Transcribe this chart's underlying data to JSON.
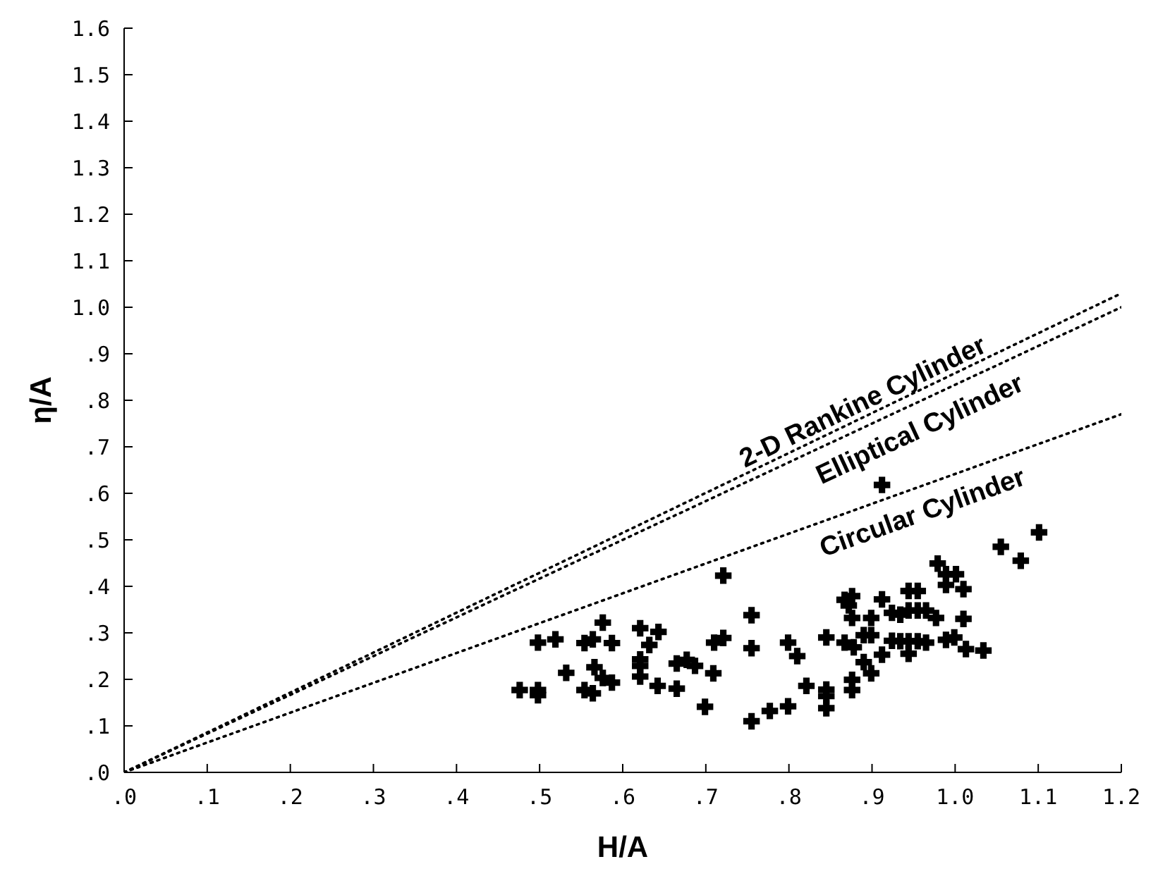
{
  "chart_data": {
    "type": "scatter",
    "xlabel": "H/A",
    "ylabel": "η/A",
    "xlim": [
      0,
      1.2
    ],
    "ylim": [
      0,
      1.6
    ],
    "xticks": [
      {
        "value": 0,
        "label": ".0"
      },
      {
        "value": 0.1,
        "label": ".1"
      },
      {
        "value": 0.2,
        "label": ".2"
      },
      {
        "value": 0.3,
        "label": ".3"
      },
      {
        "value": 0.4,
        "label": ".4"
      },
      {
        "value": 0.5,
        "label": ".5"
      },
      {
        "value": 0.6,
        "label": ".6"
      },
      {
        "value": 0.7,
        "label": ".7"
      },
      {
        "value": 0.8,
        "label": ".8"
      },
      {
        "value": 0.9,
        "label": ".9"
      },
      {
        "value": 1.0,
        "label": "1.0"
      },
      {
        "value": 1.1,
        "label": "1.1"
      },
      {
        "value": 1.2,
        "label": "1.2"
      }
    ],
    "yticks": [
      {
        "value": 0,
        "label": ".0"
      },
      {
        "value": 0.1,
        "label": ".1"
      },
      {
        "value": 0.2,
        "label": ".2"
      },
      {
        "value": 0.3,
        "label": ".3"
      },
      {
        "value": 0.4,
        "label": ".4"
      },
      {
        "value": 0.5,
        "label": ".5"
      },
      {
        "value": 0.6,
        "label": ".6"
      },
      {
        "value": 0.7,
        "label": ".7"
      },
      {
        "value": 0.8,
        "label": ".8"
      },
      {
        "value": 0.9,
        "label": ".9"
      },
      {
        "value": 1.0,
        "label": "1.0"
      },
      {
        "value": 1.1,
        "label": "1.1"
      },
      {
        "value": 1.2,
        "label": "1.2"
      },
      {
        "value": 1.3,
        "label": "1.3"
      },
      {
        "value": 1.4,
        "label": "1.4"
      },
      {
        "value": 1.5,
        "label": "1.5"
      },
      {
        "value": 1.6,
        "label": "1.6"
      }
    ],
    "grid": false,
    "legend": false,
    "marker": "cross",
    "series": [
      {
        "color": "#000000",
        "x": [
          0.476,
          0.498,
          0.498,
          0.498,
          0.519,
          0.532,
          0.554,
          0.554,
          0.564,
          0.566,
          0.564,
          0.576,
          0.576,
          0.587,
          0.587,
          0.621,
          0.621,
          0.621,
          0.621,
          0.632,
          0.643,
          0.642,
          0.665,
          0.677,
          0.687,
          0.665,
          0.699,
          0.709,
          0.71,
          0.721,
          0.721,
          0.755,
          0.755,
          0.755,
          0.777,
          0.799,
          0.799,
          0.81,
          0.821,
          0.845,
          0.845,
          0.845,
          0.845,
          0.867,
          0.876,
          0.872,
          0.867,
          0.878,
          0.876,
          0.876,
          0.876,
          0.89,
          0.899,
          0.89,
          0.899,
          0.899,
          0.912,
          0.912,
          0.912,
          0.924,
          0.924,
          0.934,
          0.934,
          0.944,
          0.955,
          0.944,
          0.955,
          0.965,
          0.944,
          0.955,
          0.965,
          0.944,
          0.977,
          0.979,
          0.989,
          1.001,
          0.989,
          1.01,
          0.989,
          0.999,
          1.01,
          1.013,
          1.034,
          1.055,
          1.079,
          1.101
        ],
        "values": [
          0.177,
          0.279,
          0.177,
          0.166,
          0.286,
          0.214,
          0.278,
          0.177,
          0.286,
          0.226,
          0.17,
          0.322,
          0.203,
          0.278,
          0.193,
          0.31,
          0.243,
          0.229,
          0.206,
          0.274,
          0.302,
          0.186,
          0.234,
          0.242,
          0.229,
          0.18,
          0.141,
          0.213,
          0.279,
          0.289,
          0.423,
          0.338,
          0.267,
          0.11,
          0.132,
          0.142,
          0.279,
          0.25,
          0.186,
          0.29,
          0.178,
          0.164,
          0.138,
          0.371,
          0.379,
          0.359,
          0.279,
          0.269,
          0.332,
          0.199,
          0.177,
          0.237,
          0.332,
          0.295,
          0.295,
          0.213,
          0.372,
          0.253,
          0.618,
          0.343,
          0.283,
          0.339,
          0.282,
          0.39,
          0.39,
          0.348,
          0.348,
          0.348,
          0.282,
          0.282,
          0.279,
          0.255,
          0.332,
          0.449,
          0.426,
          0.426,
          0.403,
          0.394,
          0.285,
          0.29,
          0.33,
          0.265,
          0.262,
          0.485,
          0.455,
          0.516
        ]
      },
      {
        "type": "line",
        "name": "2-D Rankine Cylinder",
        "color": "#000000",
        "line_style": "dotted",
        "marker": "none",
        "x": [
          0,
          1.2
        ],
        "values": [
          0,
          1.03
        ]
      },
      {
        "type": "line",
        "name": "Elliptical Cylinder",
        "color": "#000000",
        "line_style": "dotted",
        "marker": "none",
        "x": [
          0,
          1.2
        ],
        "values": [
          0,
          1.0
        ]
      },
      {
        "type": "line",
        "name": "Circular Cylinder",
        "color": "#000000",
        "line_style": "dotted",
        "marker": "none",
        "x": [
          0,
          1.2
        ],
        "values": [
          0,
          0.77
        ]
      }
    ]
  }
}
